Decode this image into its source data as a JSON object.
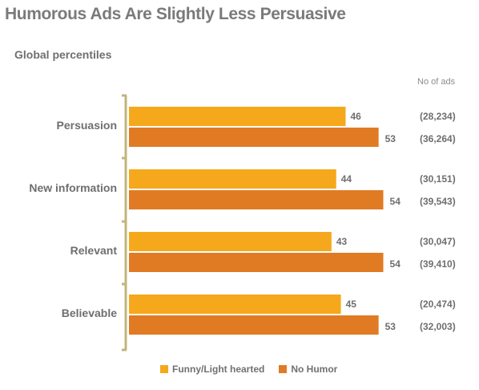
{
  "colors": {
    "funny": "#f5a81c",
    "no_humor": "#e07b24",
    "text": "#6e6e6e",
    "axis": "#c2b47a"
  },
  "chart_data": {
    "type": "bar",
    "orientation": "horizontal",
    "title": "Humorous Ads Are Slightly Less Persuasive",
    "subtitle": "Global percentiles",
    "annotation_header": "No of ads",
    "categories": [
      "Persuasion",
      "New information",
      "Relevant",
      "Believable"
    ],
    "series": [
      {
        "name": "Funny/Light hearted",
        "values": [
          46,
          44,
          43,
          45
        ],
        "counts": [
          "(28,234)",
          "(30,151)",
          "(30,047)",
          "(20,474)"
        ]
      },
      {
        "name": "No Humor",
        "values": [
          53,
          54,
          54,
          53
        ],
        "counts": [
          "(36,264)",
          "(39,543)",
          "(39,410)",
          "(32,003)"
        ]
      }
    ],
    "xlim": [
      0,
      60
    ],
    "grid": false,
    "legend": "bottom"
  }
}
